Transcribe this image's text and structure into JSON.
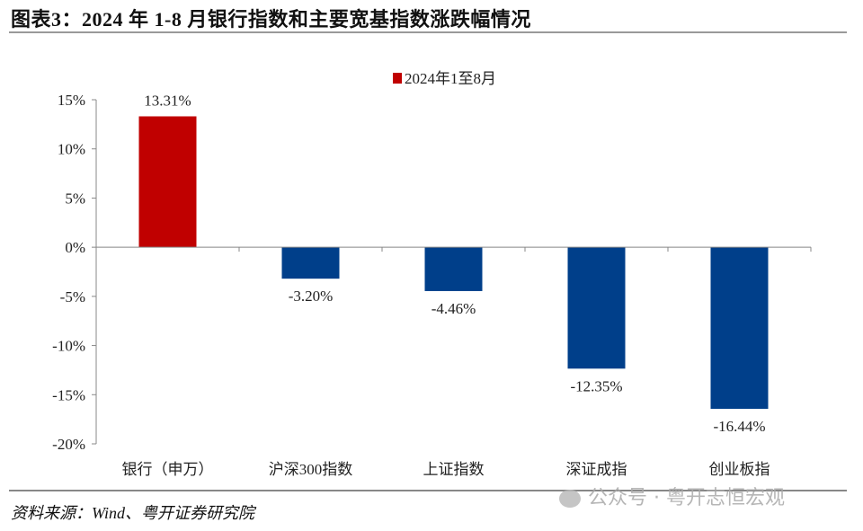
{
  "title": "图表3：2024 年 1-8 月银行指数和主要宽基指数涨跌幅情况",
  "source": "资料来源：Wind、粤开证券研究院",
  "watermark": "公众号 · 粤开志恒宏观",
  "chart_data": {
    "type": "bar",
    "categories": [
      "银行（申万）",
      "沪深300指数",
      "上证指数",
      "深证成指",
      "创业板指"
    ],
    "series": [
      {
        "name": "2024年1至8月",
        "values": [
          13.31,
          -3.2,
          -4.46,
          -12.35,
          -16.44
        ]
      }
    ],
    "data_labels": [
      "13.31%",
      "-3.20%",
      "-4.46%",
      "-12.35%",
      "-16.44%"
    ],
    "yticks": [
      15,
      10,
      5,
      0,
      -5,
      -10,
      -15,
      -20
    ],
    "ytick_labels": [
      "15%",
      "10%",
      "5%",
      "0%",
      "-5%",
      "-10%",
      "-15%",
      "-20%"
    ],
    "ylim": [
      -20,
      15
    ],
    "grid": false,
    "legend_position": "top-center",
    "colors": {
      "positive": "#C00000",
      "negative": "#003F8A"
    }
  }
}
